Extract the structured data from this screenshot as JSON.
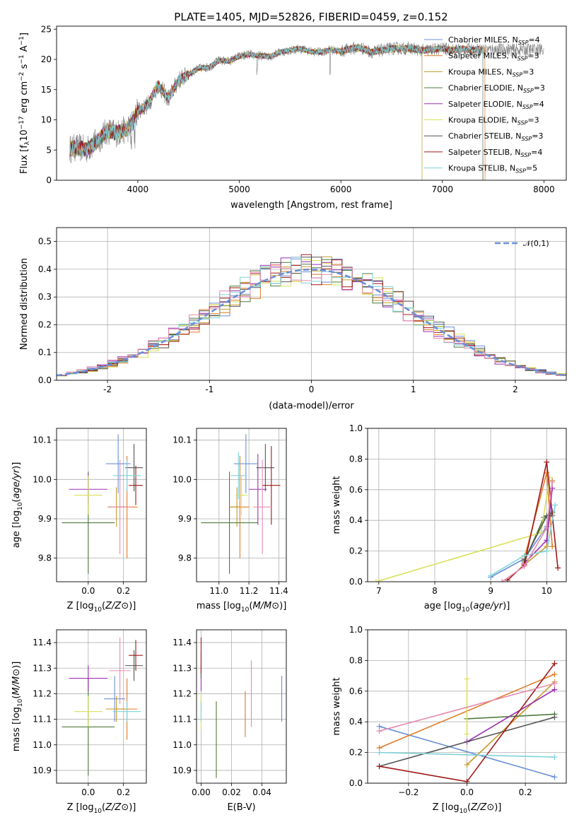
{
  "figure": {
    "title": "PLATE=1405, MJD=52826, FIBERID=0459, z=0.152",
    "colors": [
      "#6b8fd8",
      "#e07b27",
      "#c89a2a",
      "#4e7a3d",
      "#9b2fb0",
      "#d9e05a",
      "#555555",
      "#a01818",
      "#7fd3d8",
      "#e58bb0"
    ]
  },
  "chart_data": [
    {
      "id": "spectrum",
      "type": "line",
      "title": "PLATE=1405, MJD=52826, FIBERID=0459, z=0.152",
      "xlabel": "wavelength [Angstrom, rest frame]",
      "ylabel": "Flux [f_λ10^{-17} erg cm^{-2} s^{-1} A^{-1}]",
      "ylabel_parts": [
        "Flux [f",
        "λ",
        "10",
        "−17",
        " erg cm",
        "−2",
        " s",
        "−1",
        " A",
        "−1",
        "]"
      ],
      "xlim": [
        3200,
        8220
      ],
      "ylim": [
        0,
        25.5
      ],
      "xticks": [
        4000,
        5000,
        6000,
        7000,
        8000
      ],
      "yticks": [
        0,
        5,
        10,
        15,
        20,
        25
      ],
      "legend_position": "upper right",
      "continuum": {
        "x": [
          3330,
          3400,
          3500,
          3600,
          3700,
          3800,
          3900,
          3950,
          4000,
          4100,
          4200,
          4300,
          4400,
          4500,
          4600,
          4700,
          4800,
          4900,
          5000,
          5100,
          5200,
          5300,
          5400,
          5500,
          5600,
          5700,
          5800,
          5900,
          6000,
          6100,
          6200,
          6300,
          6400,
          6500,
          6600,
          6700,
          6800,
          6900,
          7000,
          7100,
          7200,
          7300,
          7400
        ],
        "y": [
          5.2,
          5.4,
          5.1,
          6.5,
          8.2,
          7.8,
          8.5,
          9.5,
          11.5,
          12.5,
          15.8,
          13.5,
          16.5,
          17.5,
          18.5,
          18.7,
          19.8,
          19.7,
          20.5,
          20.8,
          20.6,
          20.5,
          21.2,
          21.5,
          21.8,
          21.3,
          21.2,
          21.6,
          21.3,
          21.8,
          21.9,
          21.2,
          21.5,
          21.8,
          21.8,
          21.8,
          21.5,
          21.6,
          21.8,
          21.5,
          21.7,
          21.6,
          21.6
        ]
      },
      "series": [
        {
          "name": "Chabrier MILES, N",
          "sub": "SSP",
          "suffix": "=4",
          "color": "#6b8fd8",
          "xmax": 7400
        },
        {
          "name": "Salpeter MILES, N",
          "sub": "SSP",
          "suffix": "=3",
          "color": "#e07b27",
          "xmax": 7420
        },
        {
          "name": "Kroupa MILES, N",
          "sub": "SSP",
          "suffix": "=3",
          "color": "#c89a2a",
          "xmax": 7400
        },
        {
          "name": "Chabrier ELODIE, N",
          "sub": "SSP",
          "suffix": "=3",
          "color": "#4e7a3d",
          "xmax": 6800
        },
        {
          "name": "Salpeter ELODIE, N",
          "sub": "SSP",
          "suffix": "=4",
          "color": "#9b2fb0",
          "xmax": 6800
        },
        {
          "name": "Kroupa ELODIE, N",
          "sub": "SSP",
          "suffix": "=3",
          "color": "#d9e05a",
          "xmax": 6800
        },
        {
          "name": "Chabrier STELIB, N",
          "sub": "SSP",
          "suffix": "=3",
          "color": "#555555",
          "xmax": 7400
        },
        {
          "name": "Salpeter STELIB, N",
          "sub": "SSP",
          "suffix": "=4",
          "color": "#a01818",
          "xmax": 7400
        },
        {
          "name": "Kroupa STELIB, N",
          "sub": "SSP",
          "suffix": "=5",
          "color": "#7fd3d8",
          "xmax": 7400
        }
      ]
    },
    {
      "id": "residuals",
      "type": "line",
      "xlabel": "(data-model)/error",
      "ylabel": "Normed distribution",
      "xlim": [
        -2.5,
        2.5
      ],
      "ylim": [
        0,
        0.55
      ],
      "xticks": [
        -2,
        -1,
        0,
        1,
        2
      ],
      "yticks": [
        0.0,
        0.1,
        0.2,
        0.3,
        0.4,
        0.5
      ],
      "grid": true,
      "reference": {
        "name": "𝒩(0,1)",
        "mu": 0,
        "sigma": 1,
        "color": "#6b8fd8"
      },
      "bin_width": 0.1,
      "histogram_colors": [
        "#6b8fd8",
        "#e07b27",
        "#c89a2a",
        "#4e7a3d",
        "#9b2fb0",
        "#d9e05a",
        "#555555",
        "#a01818",
        "#7fd3d8",
        "#e58bb0"
      ],
      "legend_position": "upper right"
    },
    {
      "id": "age-vs-Z",
      "type": "scatter",
      "xlabel": "Z [log10(Z/Z⊙)]",
      "ylabel": "age  [log10(age/yr)]",
      "xlim": [
        -0.18,
        0.33
      ],
      "ylim": [
        9.74,
        10.13
      ],
      "xticks": [
        0.0,
        0.2
      ],
      "yticks": [
        9.8,
        9.9,
        10.0,
        10.1
      ],
      "grid": true,
      "points": [
        {
          "x": 0.17,
          "y": 10.04,
          "xerr": 0.07,
          "yerr": 0.075,
          "color": "#6b8fd8"
        },
        {
          "x": 0.22,
          "y": 9.93,
          "xerr": 0.06,
          "yerr": 0.13,
          "color": "#e07b27"
        },
        {
          "x": 0.16,
          "y": 9.93,
          "xerr": 0.05,
          "yerr": 0.05,
          "color": "#c89a2a"
        },
        {
          "x": 0.0,
          "y": 9.89,
          "xerr": 0.15,
          "yerr": 0.13,
          "color": "#4e7a3d"
        },
        {
          "x": 0.0,
          "y": 9.975,
          "xerr": 0.11,
          "yerr": 0.04,
          "color": "#9b2fb0"
        },
        {
          "x": 0.0,
          "y": 9.96,
          "xerr": 0.08,
          "yerr": 0.05,
          "color": "#d9e05a"
        },
        {
          "x": 0.26,
          "y": 10.03,
          "xerr": 0.05,
          "yerr": 0.06,
          "color": "#555555"
        },
        {
          "x": 0.27,
          "y": 9.985,
          "xerr": 0.04,
          "yerr": 0.05,
          "color": "#a01818"
        },
        {
          "x": 0.22,
          "y": 10.01,
          "xerr": 0.08,
          "yerr": 0.04,
          "color": "#7fd3d8"
        },
        {
          "x": 0.18,
          "y": 9.93,
          "xerr": 0.06,
          "yerr": 0.12,
          "color": "#e58bb0"
        }
      ]
    },
    {
      "id": "age-vs-mass",
      "type": "scatter",
      "xlabel": "mass [log10(M/M⊙)]",
      "ylabel": "",
      "xlim": [
        10.85,
        11.45
      ],
      "ylim": [
        9.74,
        10.13
      ],
      "xticks": [
        11.0,
        11.2,
        11.4
      ],
      "yticks": [
        9.8,
        9.9,
        10.0,
        10.1
      ],
      "grid": true,
      "points": [
        {
          "x": 11.18,
          "y": 10.04,
          "xerr": 0.08,
          "yerr": 0.075,
          "color": "#6b8fd8"
        },
        {
          "x": 11.14,
          "y": 9.93,
          "xerr": 0.06,
          "yerr": 0.13,
          "color": "#e07b27"
        },
        {
          "x": 11.12,
          "y": 9.93,
          "xerr": 0.05,
          "yerr": 0.05,
          "color": "#c89a2a"
        },
        {
          "x": 11.07,
          "y": 9.89,
          "xerr": 0.19,
          "yerr": 0.13,
          "color": "#4e7a3d"
        },
        {
          "x": 11.26,
          "y": 9.975,
          "xerr": 0.06,
          "yerr": 0.09,
          "color": "#9b2fb0"
        },
        {
          "x": 11.15,
          "y": 9.96,
          "xerr": 0.04,
          "yerr": 0.05,
          "color": "#d9e05a"
        },
        {
          "x": 11.31,
          "y": 10.03,
          "xerr": 0.06,
          "yerr": 0.06,
          "color": "#555555"
        },
        {
          "x": 11.35,
          "y": 9.985,
          "xerr": 0.06,
          "yerr": 0.1,
          "color": "#a01818"
        },
        {
          "x": 11.13,
          "y": 10.01,
          "xerr": 0.05,
          "yerr": 0.06,
          "color": "#7fd3d8"
        },
        {
          "x": 11.29,
          "y": 9.93,
          "xerr": 0.06,
          "yerr": 0.12,
          "color": "#e58bb0"
        }
      ]
    },
    {
      "id": "weight-vs-age",
      "type": "line",
      "xlabel": "age  [log10(age/yr)]",
      "ylabel": "mass weight",
      "xlim": [
        6.8,
        10.35
      ],
      "ylim": [
        0,
        1
      ],
      "xticks": [
        7,
        8,
        9,
        10
      ],
      "yticks": [
        0.0,
        0.2,
        0.4,
        0.6,
        0.8,
        1.0
      ],
      "grid": true,
      "series": [
        {
          "color": "#6b8fd8",
          "x": [
            9.0,
            9.6,
            10.0,
            10.1
          ],
          "y": [
            0.03,
            0.15,
            0.36,
            0.46
          ]
        },
        {
          "color": "#e07b27",
          "x": [
            9.6,
            10.0,
            10.1
          ],
          "y": [
            0.15,
            0.71,
            0.23
          ]
        },
        {
          "color": "#c89a2a",
          "x": [
            9.6,
            10.0,
            10.1
          ],
          "y": [
            0.11,
            0.23,
            0.66
          ]
        },
        {
          "color": "#4e7a3d",
          "x": [
            9.6,
            9.95,
            10.1
          ],
          "y": [
            0.13,
            0.42,
            0.45
          ]
        },
        {
          "color": "#9b2fb0",
          "x": [
            9.6,
            10.0,
            10.1
          ],
          "y": [
            0.12,
            0.27,
            0.61
          ]
        },
        {
          "color": "#d9e05a",
          "x": [
            6.95,
            9.9,
            10.05
          ],
          "y": [
            0.0,
            0.32,
            0.68
          ]
        },
        {
          "color": "#555555",
          "x": [
            9.6,
            10.0,
            10.1
          ],
          "y": [
            0.14,
            0.43,
            0.43
          ]
        },
        {
          "color": "#a01818",
          "x": [
            9.3,
            9.6,
            10.0,
            10.2
          ],
          "y": [
            0.01,
            0.11,
            0.78,
            0.09
          ]
        },
        {
          "color": "#7fd3d8",
          "x": [
            9.0,
            9.6,
            10.0,
            10.15
          ],
          "y": [
            0.04,
            0.17,
            0.2,
            0.5
          ]
        },
        {
          "color": "#e58bb0",
          "x": [
            9.2,
            9.6,
            10.0,
            10.1
          ],
          "y": [
            0.0,
            0.1,
            0.35,
            0.65
          ]
        }
      ]
    },
    {
      "id": "mass-vs-Z",
      "type": "scatter",
      "xlabel": "Z [log10(Z/Z⊙)]",
      "ylabel": "mass [log10(M/M⊙)]",
      "xlim": [
        -0.18,
        0.33
      ],
      "ylim": [
        10.85,
        11.45
      ],
      "xticks": [
        0.0,
        0.2
      ],
      "yticks": [
        10.9,
        11.0,
        11.1,
        11.2,
        11.3,
        11.4
      ],
      "grid": true,
      "points": [
        {
          "x": 0.15,
          "y": 11.18,
          "xerr": 0.06,
          "yerr": 0.09,
          "color": "#6b8fd8"
        },
        {
          "x": 0.22,
          "y": 11.14,
          "xerr": 0.06,
          "yerr": 0.12,
          "color": "#e07b27"
        },
        {
          "x": 0.16,
          "y": 11.14,
          "xerr": 0.06,
          "yerr": 0.05,
          "color": "#c89a2a"
        },
        {
          "x": 0.0,
          "y": 11.07,
          "xerr": 0.15,
          "yerr": 0.19,
          "color": "#4e7a3d"
        },
        {
          "x": 0.0,
          "y": 11.26,
          "xerr": 0.11,
          "yerr": 0.05,
          "color": "#9b2fb0"
        },
        {
          "x": 0.0,
          "y": 11.13,
          "xerr": 0.08,
          "yerr": 0.06,
          "color": "#d9e05a"
        },
        {
          "x": 0.26,
          "y": 11.31,
          "xerr": 0.05,
          "yerr": 0.06,
          "color": "#555555"
        },
        {
          "x": 0.27,
          "y": 11.35,
          "xerr": 0.04,
          "yerr": 0.06,
          "color": "#a01818"
        },
        {
          "x": 0.22,
          "y": 11.13,
          "xerr": 0.08,
          "yerr": 0.04,
          "color": "#7fd3d8"
        },
        {
          "x": 0.18,
          "y": 11.29,
          "xerr": 0.06,
          "yerr": 0.13,
          "color": "#e58bb0"
        }
      ]
    },
    {
      "id": "mass-vs-ebv",
      "type": "scatter",
      "xlabel": "E(B-V)",
      "ylabel": "",
      "xlim": [
        -0.003,
        0.056
      ],
      "ylim": [
        10.85,
        11.45
      ],
      "xticks": [
        0.0,
        0.02,
        0.04
      ],
      "yticks": [
        10.9,
        11.0,
        11.1,
        11.2,
        11.3,
        11.4
      ],
      "grid": true,
      "points": [
        {
          "x": 0.053,
          "y": 11.18,
          "xerr": 0,
          "yerr": 0.09,
          "color": "#6b8fd8"
        },
        {
          "x": 0.029,
          "y": 11.12,
          "xerr": 0,
          "yerr": 0.09,
          "color": "#e07b27"
        },
        {
          "x": 0.0,
          "y": 11.14,
          "xerr": 0,
          "yerr": 0.05,
          "color": "#c89a2a"
        },
        {
          "x": 0.01,
          "y": 11.02,
          "xerr": 0,
          "yerr": 0.15,
          "color": "#4e7a3d"
        },
        {
          "x": 0.0,
          "y": 11.26,
          "xerr": 0,
          "yerr": 0.05,
          "color": "#9b2fb0"
        },
        {
          "x": 0.0,
          "y": 11.13,
          "xerr": 0,
          "yerr": 0.07,
          "color": "#d9e05a"
        },
        {
          "x": 0.0,
          "y": 11.31,
          "xerr": 0,
          "yerr": 0.05,
          "color": "#555555"
        },
        {
          "x": 0.0,
          "y": 11.35,
          "xerr": 0,
          "yerr": 0.07,
          "color": "#a01818"
        },
        {
          "x": 0.0,
          "y": 11.13,
          "xerr": 0,
          "yerr": 0.04,
          "color": "#7fd3d8"
        },
        {
          "x": 0.033,
          "y": 11.2,
          "xerr": 0,
          "yerr": 0.13,
          "color": "#e58bb0"
        }
      ]
    },
    {
      "id": "weight-vs-Z",
      "type": "line",
      "xlabel": "Z [log10(Z/Z⊙)]",
      "ylabel": "mass weight",
      "xlim": [
        -0.34,
        0.34
      ],
      "ylim": [
        0,
        1
      ],
      "xticks": [
        -0.2,
        0.0,
        0.2
      ],
      "yticks": [
        0.0,
        0.2,
        0.4,
        0.6,
        0.8,
        1.0
      ],
      "grid": true,
      "series": [
        {
          "color": "#6b8fd8",
          "x": [
            -0.3,
            0.3
          ],
          "y": [
            0.37,
            0.04
          ]
        },
        {
          "color": "#e07b27",
          "x": [
            -0.3,
            0.3
          ],
          "y": [
            0.23,
            0.71
          ]
        },
        {
          "color": "#c89a2a",
          "x": [
            0.0,
            0.3
          ],
          "y": [
            0.12,
            0.66
          ]
        },
        {
          "color": "#4e7a3d",
          "x": [
            0.0,
            0.3
          ],
          "y": [
            0.42,
            0.45
          ]
        },
        {
          "color": "#9b2fb0",
          "x": [
            0.0,
            0.3
          ],
          "y": [
            0.27,
            0.61
          ]
        },
        {
          "color": "#d9e05a",
          "x": [
            0.0,
            0.0
          ],
          "y": [
            0.32,
            0.68
          ]
        },
        {
          "color": "#555555",
          "x": [
            -0.3,
            0.3
          ],
          "y": [
            0.11,
            0.43
          ]
        },
        {
          "color": "#a01818",
          "x": [
            -0.3,
            0.0,
            0.3
          ],
          "y": [
            0.11,
            0.01,
            0.78
          ]
        },
        {
          "color": "#7fd3d8",
          "x": [
            -0.3,
            0.3
          ],
          "y": [
            0.2,
            0.17
          ]
        },
        {
          "color": "#e58bb0",
          "x": [
            -0.3,
            0.3
          ],
          "y": [
            0.34,
            0.65
          ]
        }
      ]
    }
  ]
}
